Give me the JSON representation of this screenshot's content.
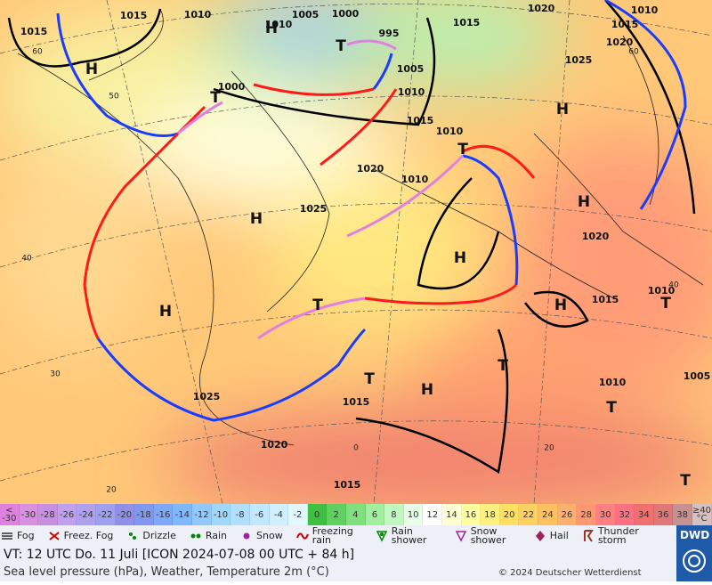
{
  "map": {
    "pressure_labels": [
      "1015",
      "1010",
      "1005",
      "1000",
      "1020",
      "1010",
      "1015",
      "1015",
      "1010",
      "995",
      "1005",
      "1010",
      "1025",
      "1020",
      "1015",
      "1000",
      "1015",
      "1010",
      "1020",
      "1010",
      "1025",
      "1020",
      "1015",
      "1010",
      "1010",
      "1005",
      "1025",
      "1015",
      "1020",
      "1015"
    ],
    "highs": [
      "H",
      "H",
      "H",
      "H",
      "H",
      "H",
      "H",
      "H",
      "H"
    ],
    "lows": [
      "T",
      "T",
      "T",
      "T",
      "T",
      "T",
      "T",
      "T",
      "T"
    ],
    "grid_labels": [
      "60",
      "50",
      "40",
      "30",
      "20",
      "0",
      "60",
      "40",
      "20"
    ]
  },
  "scale": {
    "labels": [
      "< -30",
      -30,
      -28,
      -26,
      -24,
      -22,
      -20,
      -18,
      -16,
      -14,
      -12,
      -10,
      -8,
      -6,
      -4,
      -2,
      0,
      2,
      4,
      6,
      8,
      10,
      12,
      14,
      16,
      18,
      20,
      22,
      24,
      26,
      28,
      30,
      32,
      34,
      36,
      38,
      "≥40 °C"
    ],
    "colors": [
      "#e080e0",
      "#d890e0",
      "#c890e0",
      "#c0a0f0",
      "#b0a0f0",
      "#a0a0f0",
      "#9090e8",
      "#8098f0",
      "#80a8f8",
      "#80b8ff",
      "#90c8ff",
      "#a0d8ff",
      "#b0e0ff",
      "#c0e8ff",
      "#d0f0ff",
      "#e0f8ff",
      "#40c040",
      "#60d060",
      "#80e080",
      "#a0f0a0",
      "#c0f8c0",
      "#e8ffe8",
      "#ffffff",
      "#ffffd0",
      "#ffffa0",
      "#fff080",
      "#ffe060",
      "#ffd060",
      "#ffc060",
      "#ffb070",
      "#ff9870",
      "#ff8080",
      "#ff7080",
      "#f07070",
      "#e07878",
      "#c89090",
      "#d8c0c0"
    ]
  },
  "legend": [
    "Fog",
    "Freez. Fog",
    "Drizzle",
    "Rain",
    "Snow",
    "Freezing rain",
    "Rain shower",
    "Snow shower",
    "Hail",
    "Thunder storm"
  ],
  "footer": {
    "valid_time": "VT: 12 UTC Do.   11 Juli [ICON 2024-07-08  00 UTC + 84 h]",
    "description": "Sea level pressure (hPa), Weather, Temperature 2m (°C)",
    "copyright": "© 2024 Deutscher Wetterdienst",
    "logo": "DWD"
  }
}
